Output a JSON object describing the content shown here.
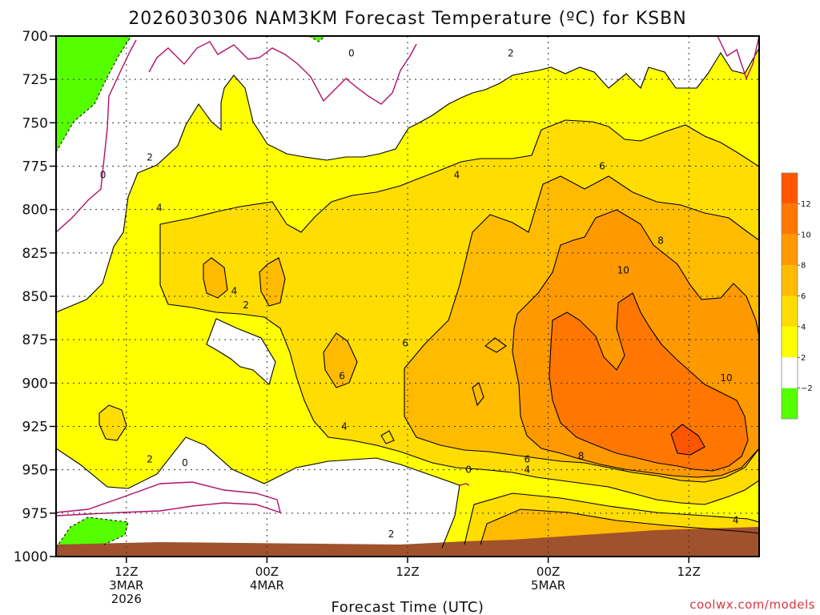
{
  "chart_data": {
    "type": "heatmap",
    "title": "2026030306 NAM3KM Forecast Temperature (ºC) for KSBN",
    "xlabel": "Forecast Time (UTC)",
    "ylabel": "",
    "x_ticks": [
      {
        "hour": 6,
        "lines": [
          "12Z",
          "3MAR",
          "2026"
        ]
      },
      {
        "hour": 18,
        "lines": [
          "00Z",
          "4MAR"
        ]
      },
      {
        "hour": 30,
        "lines": [
          "12Z"
        ]
      },
      {
        "hour": 42,
        "lines": [
          "00Z",
          "5MAR"
        ]
      },
      {
        "hour": 54,
        "lines": [
          "12Z"
        ]
      }
    ],
    "xlim": [
      0,
      60
    ],
    "y_ticks": [
      700,
      725,
      750,
      775,
      800,
      825,
      850,
      875,
      900,
      925,
      950,
      975,
      1000
    ],
    "ylim": [
      700,
      1000
    ],
    "contour_labels": [
      {
        "text": "0",
        "hour": 25.2,
        "level": 710
      },
      {
        "text": "0",
        "hour": 4.0,
        "level": 780
      },
      {
        "text": "0",
        "hour": 11.0,
        "level": 946
      },
      {
        "text": "0",
        "hour": 35.2,
        "level": 950
      },
      {
        "text": "2",
        "hour": 38.8,
        "level": 710
      },
      {
        "text": "2",
        "hour": 8.0,
        "level": 770
      },
      {
        "text": "2",
        "hour": 16.2,
        "level": 855
      },
      {
        "text": "2",
        "hour": 8.0,
        "level": 944
      },
      {
        "text": "2",
        "hour": 28.6,
        "level": 987
      },
      {
        "text": "4",
        "hour": 34.2,
        "level": 780
      },
      {
        "text": "4",
        "hour": 8.8,
        "level": 799
      },
      {
        "text": "4",
        "hour": 15.2,
        "level": 847
      },
      {
        "text": "4",
        "hour": 24.6,
        "level": 925
      },
      {
        "text": "4",
        "hour": 40.2,
        "level": 950
      },
      {
        "text": "4",
        "hour": 58.0,
        "level": 979
      },
      {
        "text": "6",
        "hour": 46.6,
        "level": 775
      },
      {
        "text": "6",
        "hour": 29.8,
        "level": 877
      },
      {
        "text": "6",
        "hour": 24.4,
        "level": 896
      },
      {
        "text": "6",
        "hour": 40.2,
        "level": 944
      },
      {
        "text": "8",
        "hour": 51.6,
        "level": 818
      },
      {
        "text": "8",
        "hour": 44.8,
        "level": 942
      },
      {
        "text": "10",
        "hour": 48.4,
        "level": 835
      },
      {
        "text": "10",
        "hour": 57.2,
        "level": 897
      }
    ],
    "colorbar": {
      "levels": [
        -2,
        2,
        4,
        6,
        8,
        10,
        12
      ],
      "labels": [
        "−2",
        "2",
        "4",
        "6",
        "8",
        "10",
        "12"
      ],
      "colors": [
        "#55ff00",
        "#ffffff",
        "#ffff00",
        "#ffdd00",
        "#ffbb00",
        "#ff9900",
        "#ff7700",
        "#ff5500"
      ]
    },
    "fill_colors": {
      "below_minus2": "#55ff00",
      "minus2_to_2": "#ffffff",
      "2_to_4": "#ffff00",
      "4_to_6": "#ffdd00",
      "6_to_8": "#ffbb00",
      "8_to_10": "#ff9900",
      "10_to_12": "#ff7700",
      "ground": "#a0522d",
      "zero_line": "#b0106a"
    },
    "grid": true,
    "legend": "right (vertical colorbar)"
  },
  "credit": "coolwx.com/models"
}
